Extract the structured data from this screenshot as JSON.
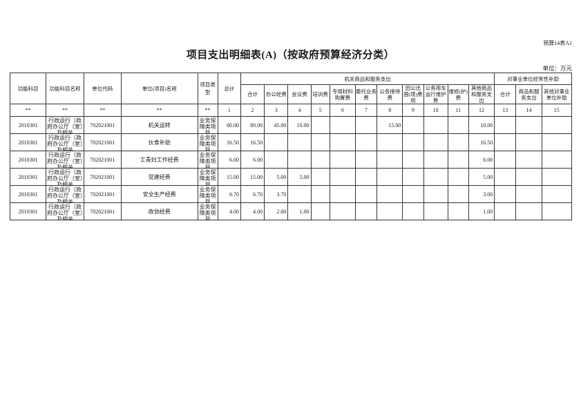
{
  "page": {
    "doc_ref": "预算14表A1",
    "title": "项目支出明细表(A)（按政府预算经济分类）",
    "unit_note": "单位：万元"
  },
  "table": {
    "headers": {
      "func_code": "功能科目",
      "func_name": "功能科目名称",
      "unit_code": "单位代码",
      "unit_name": "单位(项目)名称",
      "proj_type": "项目类型",
      "total": "总计",
      "group_agency": "机关商品和服务支出",
      "group_subsidy": "对事业单位经常性补助",
      "agency_cols": [
        "合计",
        "办公经费",
        "会议费",
        "培训费",
        "专用材料购置费",
        "委托业务费",
        "公务接待费",
        "因公出国(境)费用",
        "公务用车运行维护费",
        "维修(护)费",
        "其他商品和服务支出"
      ],
      "subsidy_cols": [
        "合计",
        "商品和服务支出",
        "其他对事业单位补助"
      ]
    },
    "marker_row": [
      "**",
      "**",
      "**",
      "**",
      "**",
      "1",
      "2",
      "3",
      "4",
      "5",
      "6",
      "7",
      "8",
      "9",
      "10",
      "11",
      "12",
      "13",
      "14",
      "15"
    ],
    "rows": [
      {
        "func_code": "2010301",
        "func_name": "行政运行（政府办公厅（室）及相关",
        "unit_code": "702021001",
        "unit_name": "机关运转",
        "proj_type": "业务保障类项目",
        "values": [
          "80.00",
          "80.00",
          "45.00",
          "10.00",
          "",
          "",
          "",
          "15.00",
          "",
          "",
          "",
          "10.00",
          "",
          "",
          ""
        ]
      },
      {
        "func_code": "2010301",
        "func_name": "行政运行（政府办公厅（室）及相关",
        "unit_code": "702021001",
        "unit_name": "伙食补助",
        "proj_type": "业务保障类项目",
        "values": [
          "16.50",
          "16.50",
          "",
          "",
          "",
          "",
          "",
          "",
          "",
          "",
          "",
          "16.50",
          "",
          "",
          ""
        ]
      },
      {
        "func_code": "2010301",
        "func_name": "行政运行（政府办公厅（室）及相关",
        "unit_code": "702021001",
        "unit_name": "工青妇工作经费",
        "proj_type": "业务保障类项目",
        "values": [
          "6.00",
          "6.00",
          "",
          "",
          "",
          "",
          "",
          "",
          "",
          "",
          "",
          "6.00",
          "",
          "",
          ""
        ]
      },
      {
        "func_code": "2010301",
        "func_name": "行政运行（政府办公厅（室）及相关",
        "unit_code": "702021001",
        "unit_name": "党建经费",
        "proj_type": "业务保障类项目",
        "values": [
          "15.00",
          "15.00",
          "5.00",
          "5.00",
          "",
          "",
          "",
          "",
          "",
          "",
          "",
          "5.00",
          "",
          "",
          ""
        ]
      },
      {
        "func_code": "2010301",
        "func_name": "行政运行（政府办公厅（室）及相关",
        "unit_code": "702021001",
        "unit_name": "安全生产经费",
        "proj_type": "业务保障类项目",
        "values": [
          "6.70",
          "6.70",
          "3.70",
          "",
          "",
          "",
          "",
          "",
          "",
          "",
          "",
          "3.00",
          "",
          "",
          ""
        ]
      },
      {
        "func_code": "2010301",
        "func_name": "行政运行（政府办公厅（室）及相关",
        "unit_code": "702021001",
        "unit_name": "政协经费",
        "proj_type": "业务保障类项目",
        "values": [
          "4.00",
          "4.00",
          "2.00",
          "1.00",
          "",
          "",
          "",
          "",
          "",
          "",
          "",
          "1.00",
          "",
          "",
          ""
        ]
      }
    ]
  }
}
